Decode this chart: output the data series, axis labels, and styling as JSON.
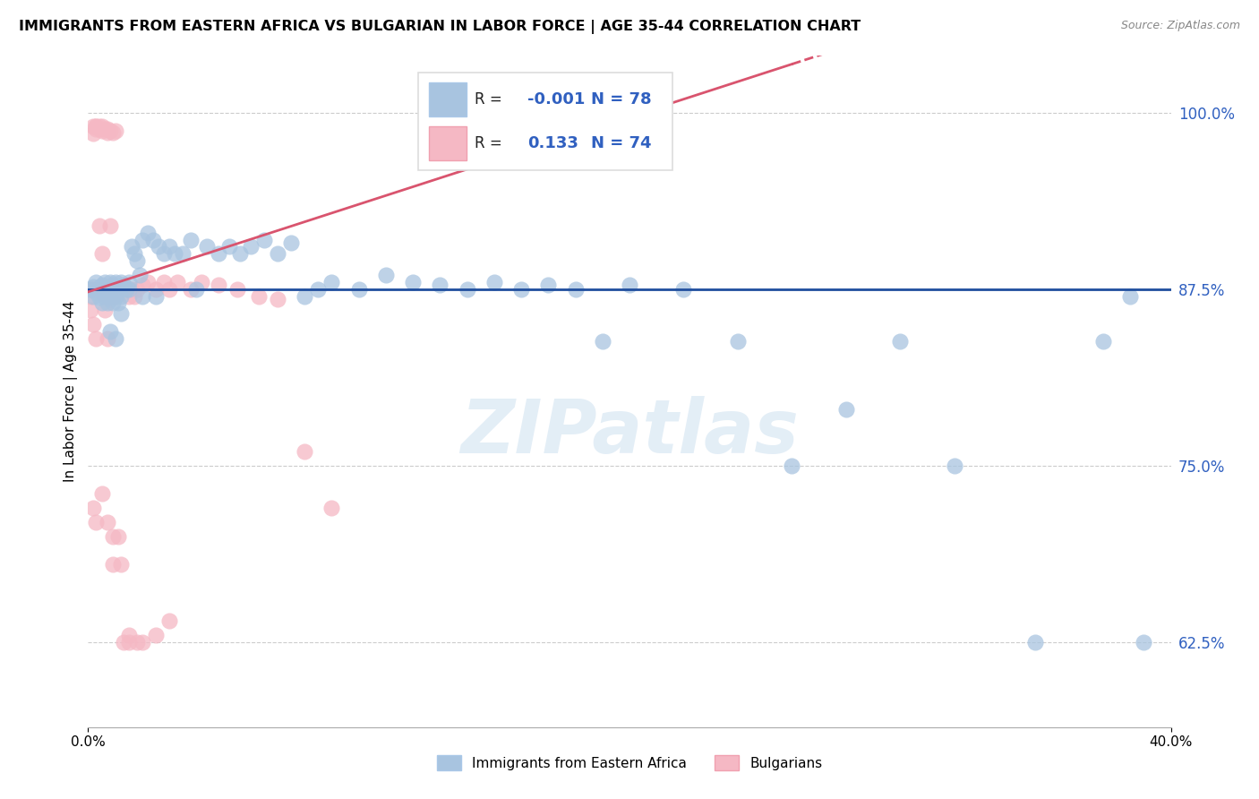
{
  "title": "IMMIGRANTS FROM EASTERN AFRICA VS BULGARIAN IN LABOR FORCE | AGE 35-44 CORRELATION CHART",
  "source": "Source: ZipAtlas.com",
  "ylabel": "In Labor Force | Age 35-44",
  "xlim": [
    0.0,
    0.4
  ],
  "ylim": [
    0.565,
    1.04
  ],
  "yticks": [
    0.625,
    0.75,
    0.875,
    1.0
  ],
  "ytick_labels": [
    "62.5%",
    "75.0%",
    "87.5%",
    "100.0%"
  ],
  "blue_color": "#a8c4e0",
  "pink_color": "#f5b8c4",
  "blue_line_color": "#1f4e9e",
  "pink_line_color": "#d9546e",
  "blue_trend_y": 0.875,
  "pink_trend_slope": 0.62,
  "pink_trend_intercept": 0.873,
  "watermark": "ZIPatlas",
  "legend_label_blue": "Immigrants from Eastern Africa",
  "legend_label_pink": "Bulgarians",
  "blue_x": [
    0.001,
    0.002,
    0.002,
    0.003,
    0.003,
    0.004,
    0.004,
    0.005,
    0.005,
    0.006,
    0.006,
    0.007,
    0.007,
    0.008,
    0.008,
    0.009,
    0.009,
    0.01,
    0.01,
    0.011,
    0.011,
    0.012,
    0.012,
    0.013,
    0.014,
    0.015,
    0.016,
    0.017,
    0.018,
    0.019,
    0.02,
    0.022,
    0.024,
    0.026,
    0.028,
    0.03,
    0.032,
    0.035,
    0.038,
    0.04,
    0.044,
    0.048,
    0.052,
    0.056,
    0.06,
    0.065,
    0.07,
    0.075,
    0.08,
    0.085,
    0.09,
    0.1,
    0.11,
    0.12,
    0.13,
    0.14,
    0.15,
    0.16,
    0.17,
    0.18,
    0.19,
    0.2,
    0.22,
    0.24,
    0.26,
    0.28,
    0.3,
    0.32,
    0.35,
    0.375,
    0.385,
    0.39,
    0.008,
    0.01,
    0.012,
    0.015,
    0.02,
    0.025
  ],
  "blue_y": [
    0.875,
    0.877,
    0.87,
    0.88,
    0.873,
    0.876,
    0.869,
    0.878,
    0.865,
    0.88,
    0.87,
    0.875,
    0.865,
    0.88,
    0.87,
    0.878,
    0.865,
    0.88,
    0.87,
    0.876,
    0.865,
    0.88,
    0.87,
    0.878,
    0.875,
    0.88,
    0.905,
    0.9,
    0.895,
    0.885,
    0.91,
    0.915,
    0.91,
    0.905,
    0.9,
    0.905,
    0.9,
    0.9,
    0.91,
    0.875,
    0.905,
    0.9,
    0.905,
    0.9,
    0.905,
    0.91,
    0.9,
    0.908,
    0.87,
    0.875,
    0.88,
    0.875,
    0.885,
    0.88,
    0.878,
    0.875,
    0.88,
    0.875,
    0.878,
    0.875,
    0.838,
    0.878,
    0.875,
    0.838,
    0.75,
    0.79,
    0.838,
    0.75,
    0.625,
    0.838,
    0.87,
    0.625,
    0.845,
    0.84,
    0.858,
    0.875,
    0.87,
    0.87
  ],
  "pink_x": [
    0.001,
    0.001,
    0.002,
    0.002,
    0.002,
    0.003,
    0.003,
    0.003,
    0.003,
    0.004,
    0.004,
    0.004,
    0.005,
    0.005,
    0.005,
    0.006,
    0.006,
    0.006,
    0.007,
    0.007,
    0.007,
    0.008,
    0.008,
    0.008,
    0.009,
    0.009,
    0.01,
    0.01,
    0.011,
    0.012,
    0.013,
    0.015,
    0.015,
    0.016,
    0.017,
    0.018,
    0.02,
    0.022,
    0.025,
    0.028,
    0.03,
    0.033,
    0.038,
    0.042,
    0.048,
    0.055,
    0.063,
    0.07,
    0.08,
    0.09,
    0.001,
    0.002,
    0.003,
    0.004,
    0.005,
    0.006,
    0.007,
    0.008,
    0.009,
    0.01,
    0.011,
    0.012,
    0.013,
    0.015,
    0.018,
    0.002,
    0.003,
    0.005,
    0.007,
    0.009,
    0.015,
    0.02,
    0.025,
    0.03
  ],
  "pink_y": [
    0.875,
    0.87,
    0.99,
    0.985,
    0.875,
    0.99,
    0.99,
    0.988,
    0.875,
    0.99,
    0.988,
    0.875,
    0.99,
    0.987,
    0.872,
    0.988,
    0.875,
    0.87,
    0.988,
    0.986,
    0.87,
    0.987,
    0.875,
    0.868,
    0.986,
    0.87,
    0.987,
    0.875,
    0.875,
    0.875,
    0.878,
    0.875,
    0.87,
    0.875,
    0.87,
    0.875,
    0.878,
    0.88,
    0.875,
    0.88,
    0.875,
    0.88,
    0.875,
    0.88,
    0.878,
    0.875,
    0.87,
    0.868,
    0.76,
    0.72,
    0.86,
    0.85,
    0.84,
    0.92,
    0.9,
    0.86,
    0.84,
    0.92,
    0.68,
    0.87,
    0.7,
    0.68,
    0.625,
    0.625,
    0.625,
    0.72,
    0.71,
    0.73,
    0.71,
    0.7,
    0.63,
    0.625,
    0.63,
    0.64
  ]
}
